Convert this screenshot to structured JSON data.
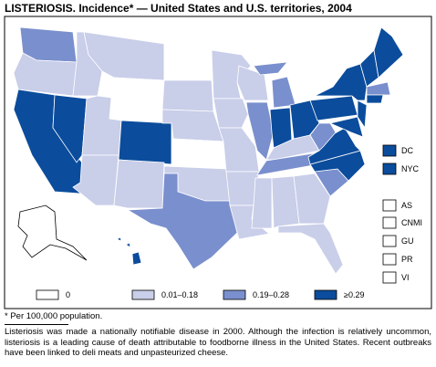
{
  "title": "LISTERIOSIS. Incidence* — United States and U.S. territories, 2004",
  "legend": [
    {
      "label": "0",
      "color": "#ffffff"
    },
    {
      "label": "0.01–0.18",
      "color": "#c9cee9"
    },
    {
      "label": "0.19–0.28",
      "color": "#7a8fcd"
    },
    {
      "label": "≥0.29",
      "color": "#0b4c9c"
    }
  ],
  "territories": [
    {
      "label": "DC",
      "legend": 3
    },
    {
      "label": "NYC",
      "legend": 3
    },
    {
      "label": "AS",
      "legend": 0
    },
    {
      "label": "CNMI",
      "legend": 0
    },
    {
      "label": "GU",
      "legend": 0
    },
    {
      "label": "PR",
      "legend": 0
    },
    {
      "label": "VI",
      "legend": 0
    }
  ],
  "footnote": "* Per 100,000 population.",
  "note": "Listeriosis was made a nationally notifiable disease in 2000. Although the infection is relatively uncommon, listeriosis is a leading cause of death attributable to foodborne illness in the United States. Recent outbreaks have been linked to deli meats and unpasteurized cheese."
}
